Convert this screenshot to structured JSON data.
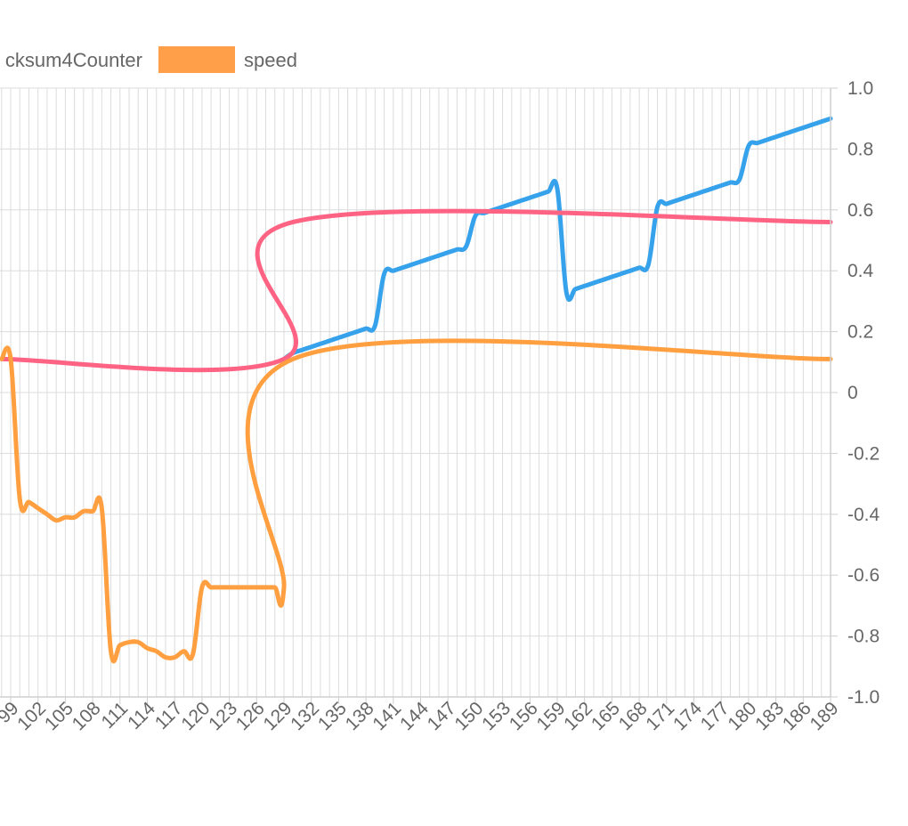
{
  "chart_data": {
    "type": "line",
    "title": "",
    "xlabel": "",
    "ylabel": "",
    "ylim": [
      -1.0,
      1.0
    ],
    "yticks": [
      "1.0",
      "0.8",
      "0.6",
      "0.4",
      "0.2",
      "0",
      "-0.2",
      "-0.4",
      "-0.6",
      "-0.8",
      "-1.0"
    ],
    "xticks": [
      "99",
      "102",
      "105",
      "108",
      "111",
      "114",
      "117",
      "120",
      "123",
      "126",
      "129",
      "132",
      "135",
      "138",
      "141",
      "144",
      "147",
      "150",
      "153",
      "156",
      "159",
      "162",
      "165",
      "168",
      "171",
      "174",
      "177",
      "180",
      "183",
      "186",
      "189"
    ],
    "xlim": [
      99,
      189
    ],
    "grid": true,
    "legend_position": "top",
    "legend": [
      {
        "label": "cksum4Counter",
        "color": "#e8f3fb"
      },
      {
        "label": "speed",
        "color": "#ff9f4a"
      }
    ],
    "series": [
      {
        "name": "cksum4Counter",
        "color": "#36a2eb",
        "x": [
          129,
          130,
          131,
          132,
          133,
          134,
          135,
          136,
          137,
          138,
          139,
          140,
          141,
          142,
          143,
          144,
          145,
          146,
          147,
          148,
          149,
          150,
          151,
          152,
          153,
          154,
          155,
          156,
          157,
          158,
          159,
          160,
          161,
          162,
          163,
          164,
          165,
          166,
          167,
          168,
          169,
          170,
          171,
          172,
          173,
          174,
          175,
          176,
          177,
          178,
          179,
          180,
          181,
          182,
          183,
          184,
          185,
          186,
          187,
          188,
          189
        ],
        "y": [
          0.11,
          0.13,
          0.14,
          0.15,
          0.16,
          0.17,
          0.18,
          0.19,
          0.2,
          0.21,
          0.22,
          0.39,
          0.4,
          0.41,
          0.42,
          0.43,
          0.44,
          0.45,
          0.46,
          0.47,
          0.48,
          0.58,
          0.59,
          0.6,
          0.61,
          0.62,
          0.63,
          0.64,
          0.65,
          0.66,
          0.67,
          0.33,
          0.34,
          0.35,
          0.36,
          0.37,
          0.38,
          0.39,
          0.4,
          0.41,
          0.42,
          0.61,
          0.62,
          0.63,
          0.64,
          0.65,
          0.66,
          0.67,
          0.68,
          0.69,
          0.7,
          0.81,
          0.82,
          0.83,
          0.84,
          0.85,
          0.86,
          0.87,
          0.88,
          0.89,
          0.9
        ]
      },
      {
        "name": "",
        "color": "#ff6384",
        "x": [
          98,
          129,
          130,
          189
        ],
        "y": [
          0.11,
          0.11,
          0.56,
          0.56
        ]
      },
      {
        "name": "speed",
        "color": "#ff9f40",
        "x": [
          98,
          99,
          100,
          101,
          102,
          103,
          104,
          105,
          106,
          107,
          108,
          109,
          110,
          111,
          112,
          113,
          114,
          115,
          116,
          117,
          118,
          119,
          120,
          121,
          122,
          123,
          124,
          125,
          126,
          127,
          128,
          129,
          130,
          189
        ],
        "y": [
          0.11,
          0.11,
          -0.35,
          -0.36,
          -0.38,
          -0.4,
          -0.42,
          -0.41,
          -0.41,
          -0.39,
          -0.39,
          -0.38,
          -0.85,
          -0.83,
          -0.82,
          -0.82,
          -0.84,
          -0.85,
          -0.87,
          -0.87,
          -0.85,
          -0.86,
          -0.64,
          -0.64,
          -0.64,
          -0.64,
          -0.64,
          -0.64,
          -0.64,
          -0.64,
          -0.64,
          -0.64,
          0.11,
          0.11
        ]
      }
    ]
  }
}
